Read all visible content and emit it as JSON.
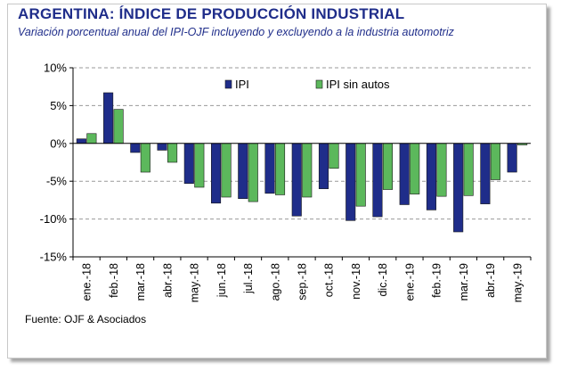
{
  "title": "ARGENTINA: ÍNDICE DE PRODUCCIÓN INDUSTRIAL",
  "subtitle": "Variación porcentual anual del IPI-OJF incluyendo y excluyendo a la industria automotriz",
  "source": "Fuente: OJF & Asociados",
  "colors": {
    "ipi": "#1f2d8a",
    "ipi_sin_autos": "#5cb85c",
    "grid": "#9a9a9a",
    "title": "#1f2d8a"
  },
  "chart_data": {
    "type": "bar",
    "categories": [
      "ene.-18",
      "feb.-18",
      "mar.-18",
      "abr.-18",
      "may.-18",
      "jun.-18",
      "jul.-18",
      "ago.-18",
      "sep.-18",
      "oct.-18",
      "nov.-18",
      "dic.-18",
      "ene.-19",
      "feb.-19",
      "mar.-19",
      "abr.-19",
      "may.-19"
    ],
    "series": [
      {
        "name": "IPI",
        "values": [
          0.6,
          6.7,
          -1.2,
          -0.9,
          -5.3,
          -7.9,
          -7.3,
          -6.6,
          -9.6,
          -6.0,
          -10.2,
          -9.7,
          -8.1,
          -8.8,
          -11.7,
          -8.0,
          -3.8
        ]
      },
      {
        "name": "IPI sin autos",
        "values": [
          1.3,
          4.5,
          -3.8,
          -2.5,
          -5.8,
          -7.1,
          -7.7,
          -6.8,
          -7.1,
          -3.3,
          -8.3,
          -6.1,
          -6.7,
          -7.0,
          -6.9,
          -4.8,
          -0.2
        ]
      }
    ],
    "yticks": [
      "10%",
      "5%",
      "0%",
      "-5%",
      "-10%",
      "-15%"
    ],
    "ylim": [
      -15,
      10
    ],
    "legend_position": "top-right",
    "grid": "horizontal dashed"
  }
}
